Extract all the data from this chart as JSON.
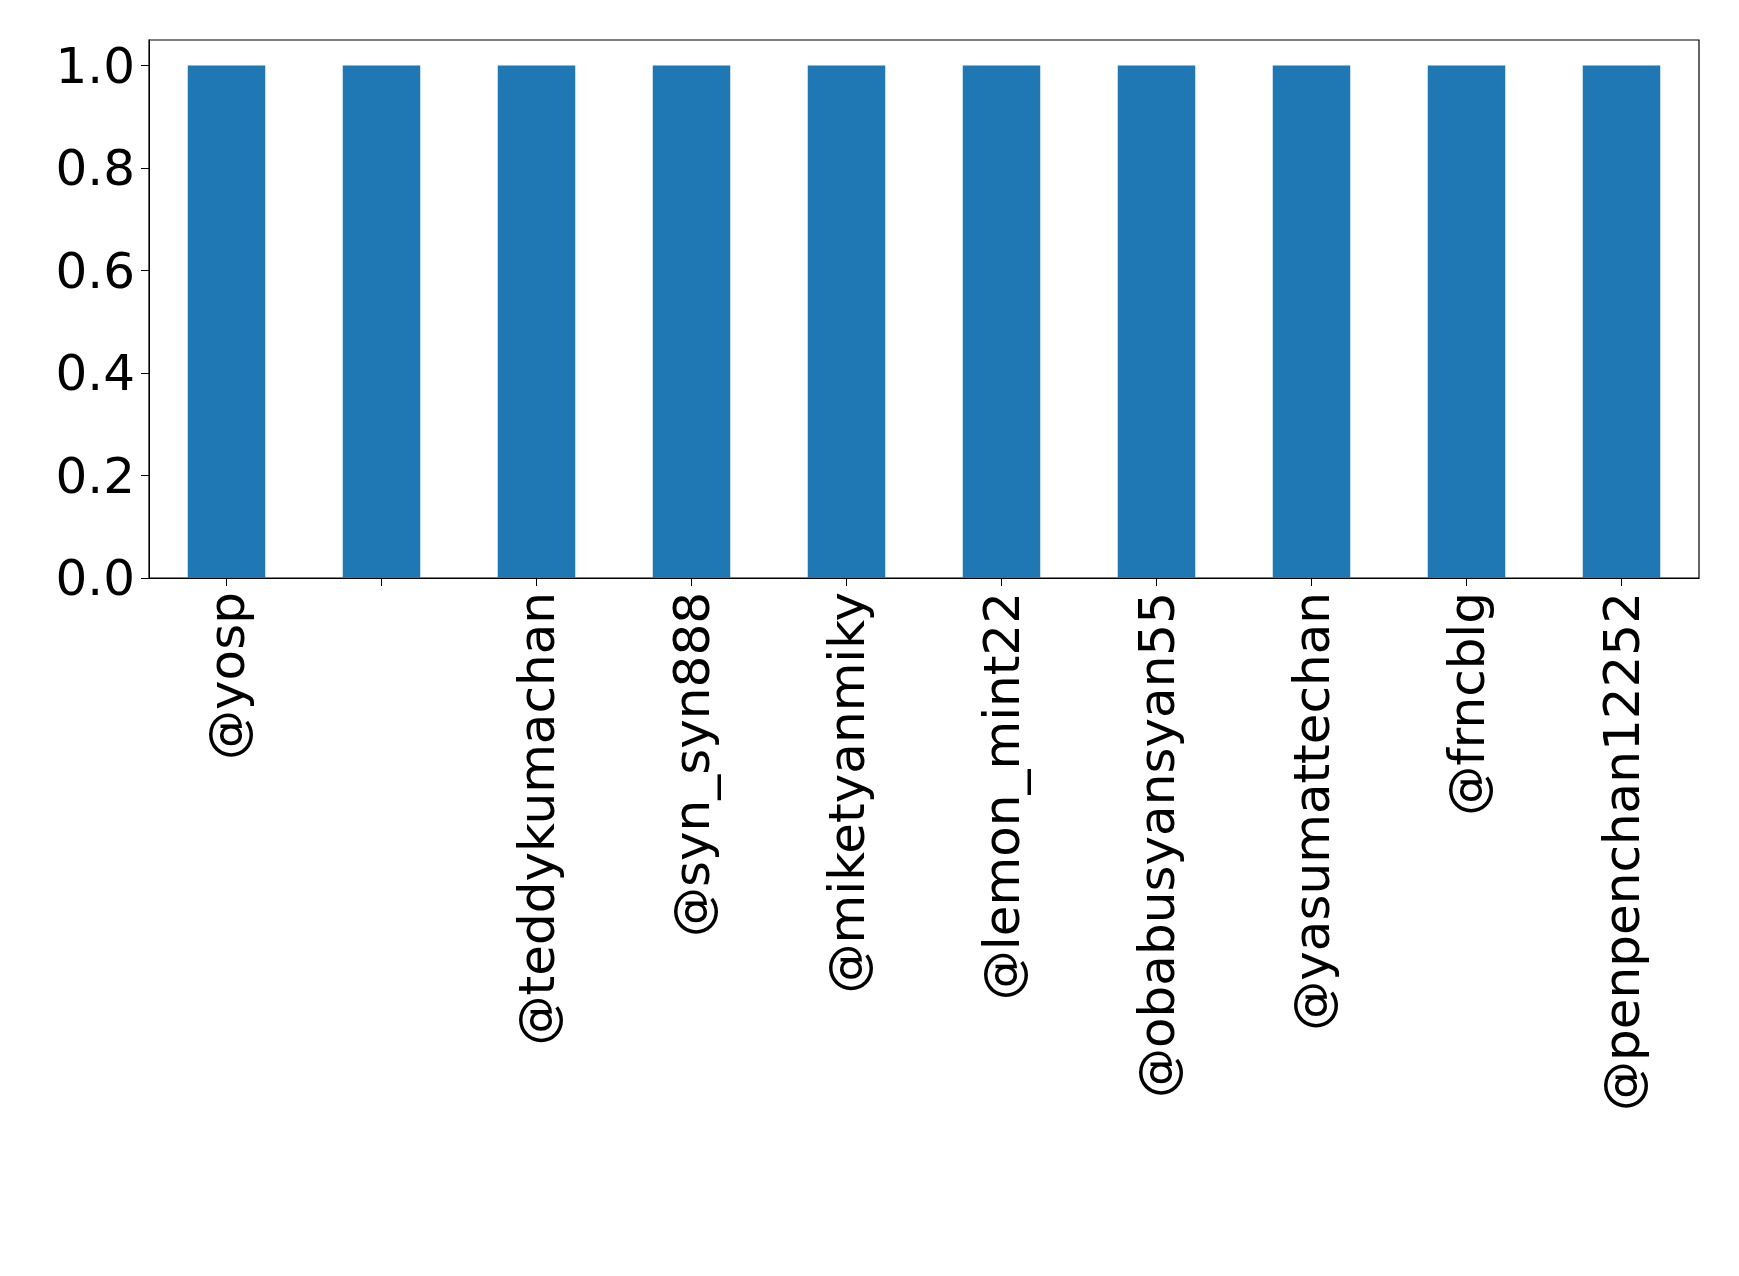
{
  "chart_data": {
    "type": "bar",
    "categories": [
      "@yosp",
      null,
      "@teddykumachan",
      "@syn_syn888",
      "@miketyanmiky",
      "@lemon_mint22",
      "@obabusyansyan55",
      "@yasumattechan",
      "@frncblg",
      "@penpenchan12252"
    ],
    "values": [
      1,
      1,
      1,
      1,
      1,
      1,
      1,
      1,
      1,
      1
    ],
    "color": "#1f77b4",
    "ylim": [
      0,
      1.05
    ],
    "yticks": [
      {
        "value": 0,
        "label": "0.0"
      },
      {
        "value": 0.2,
        "label": "0.2"
      },
      {
        "value": 0.4,
        "label": "0.4"
      },
      {
        "value": 0.6,
        "label": "0.6"
      },
      {
        "value": 0.8,
        "label": "0.8"
      },
      {
        "value": 1,
        "label": "1.0"
      }
    ],
    "grid": false
  }
}
